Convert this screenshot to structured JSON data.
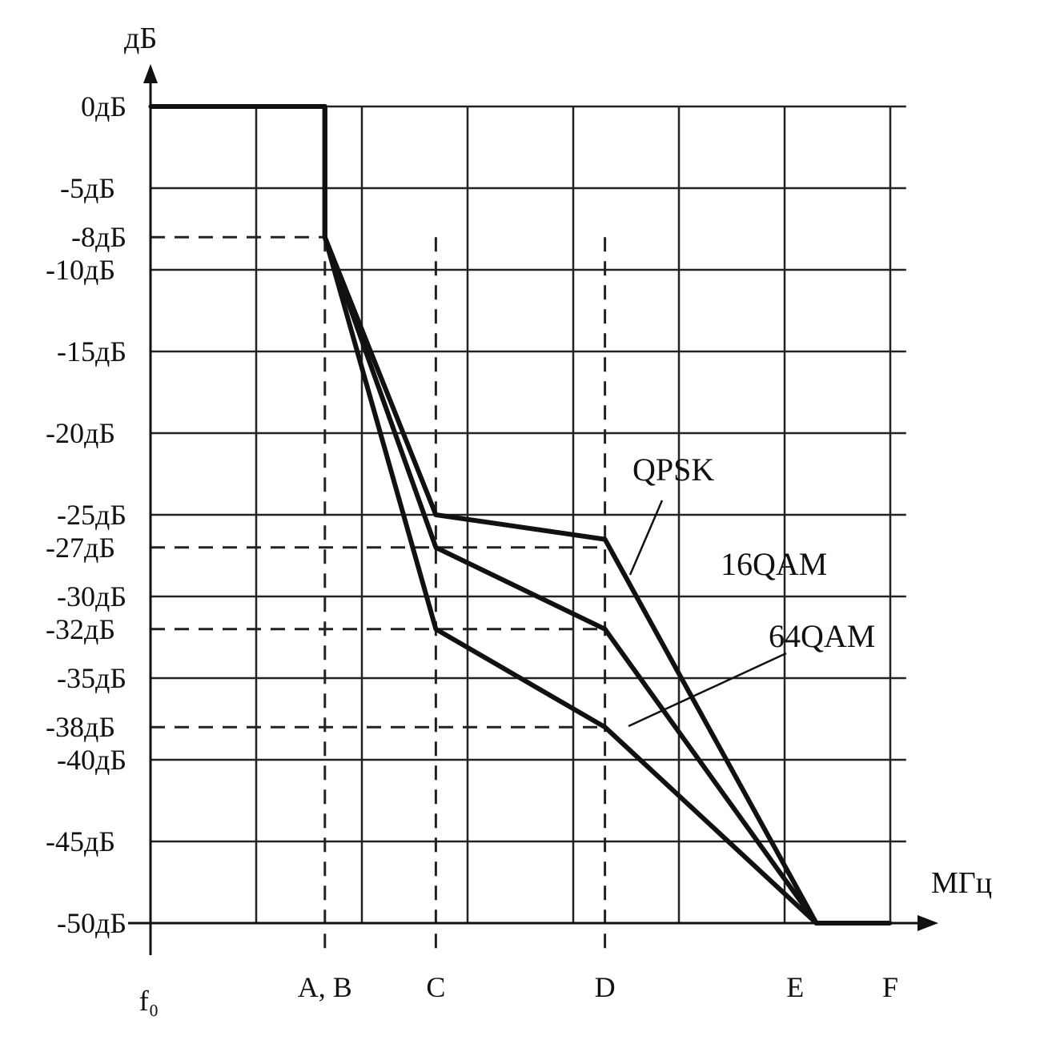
{
  "chart_data": {
    "type": "line",
    "ylabel": "дБ",
    "xlabel": "МГц",
    "ylim": [
      -50,
      0
    ],
    "y_ticks": [
      {
        "value": 0,
        "label": "0дБ"
      },
      {
        "value": -5,
        "label": "-5дБ"
      },
      {
        "value": -8,
        "label": "-8дБ"
      },
      {
        "value": -10,
        "label": "-10дБ"
      },
      {
        "value": -15,
        "label": "-15дБ"
      },
      {
        "value": -20,
        "label": "-20дБ"
      },
      {
        "value": -25,
        "label": "-25дБ"
      },
      {
        "value": -27,
        "label": "-27дБ"
      },
      {
        "value": -30,
        "label": "-30дБ"
      },
      {
        "value": -32,
        "label": "-32дБ"
      },
      {
        "value": -35,
        "label": "-35дБ"
      },
      {
        "value": -38,
        "label": "-38дБ"
      },
      {
        "value": -40,
        "label": "-40дБ"
      },
      {
        "value": -45,
        "label": "-45дБ"
      },
      {
        "value": -50,
        "label": "-50дБ"
      }
    ],
    "x_ticks": [
      {
        "value": 0,
        "label": "f₀"
      },
      {
        "value": 3.3,
        "label": "A, B"
      },
      {
        "value": 5.4,
        "label": "C"
      },
      {
        "value": 8.6,
        "label": "D"
      },
      {
        "value": 12.2,
        "label": "E"
      },
      {
        "value": 14.0,
        "label": "F"
      }
    ],
    "series": [
      {
        "name": "QPSK",
        "points": [
          [
            0,
            0
          ],
          [
            3.3,
            0
          ],
          [
            3.3,
            -8
          ],
          [
            5.4,
            -25
          ],
          [
            8.6,
            -26.5
          ],
          [
            12.6,
            -50
          ],
          [
            14.0,
            -50
          ]
        ]
      },
      {
        "name": "16QAM",
        "points": [
          [
            0,
            0
          ],
          [
            3.3,
            0
          ],
          [
            3.3,
            -8
          ],
          [
            5.4,
            -27
          ],
          [
            8.6,
            -32
          ],
          [
            12.6,
            -50
          ],
          [
            14.0,
            -50
          ]
        ]
      },
      {
        "name": "64QAM",
        "points": [
          [
            0,
            0
          ],
          [
            3.3,
            0
          ],
          [
            3.3,
            -8
          ],
          [
            5.4,
            -32
          ],
          [
            8.6,
            -38
          ],
          [
            12.6,
            -50
          ],
          [
            14.0,
            -50
          ]
        ]
      }
    ],
    "guide_lines": [
      {
        "y": -8,
        "x_end": 3.3
      },
      {
        "y": -27,
        "x_end": 8.6
      },
      {
        "y": -32,
        "x_end": 8.6
      },
      {
        "y": -38,
        "x_end": 8.6
      },
      {
        "x": 3.3
      },
      {
        "x": 5.4
      },
      {
        "x": 8.6
      }
    ],
    "grid": true
  }
}
